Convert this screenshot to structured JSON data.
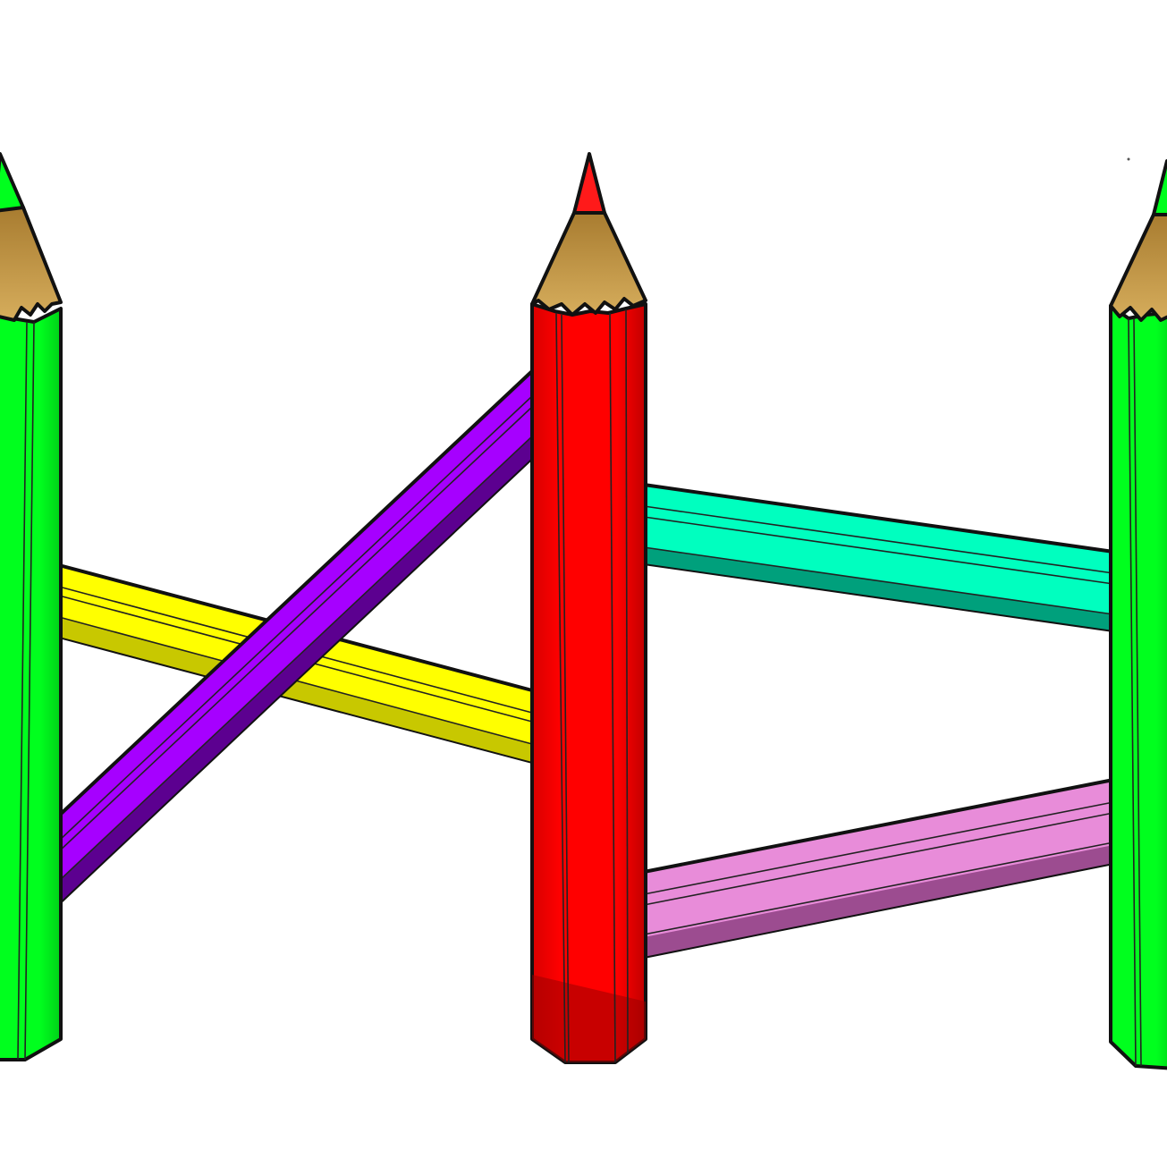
{
  "scene": {
    "background": "#ffffff",
    "description_icon": "pencil-fence-icon",
    "pencils": [
      {
        "name": "left-green-pencil",
        "color": "#00ff1e",
        "shade": "#00b810",
        "tip_color": "#00ff1e"
      },
      {
        "name": "center-red-pencil",
        "color": "#ff0000",
        "shade": "#a00000",
        "tip_color": "#ff1a1a"
      },
      {
        "name": "right-green-pencil",
        "color": "#00ff1e",
        "shade": "#00b810",
        "tip_color": "#00ff1e"
      }
    ],
    "rails": [
      {
        "name": "yellow-rail",
        "color": "#ffff00",
        "shade": "#b8b800"
      },
      {
        "name": "purple-rail",
        "color": "#a600ff",
        "shade": "#5c0090"
      },
      {
        "name": "teal-rail",
        "color": "#00ffbf",
        "shade": "#009c78"
      },
      {
        "name": "pink-rail",
        "color": "#e88cd9",
        "shade": "#9c4c90"
      }
    ],
    "wood_color": "#c49a44"
  }
}
